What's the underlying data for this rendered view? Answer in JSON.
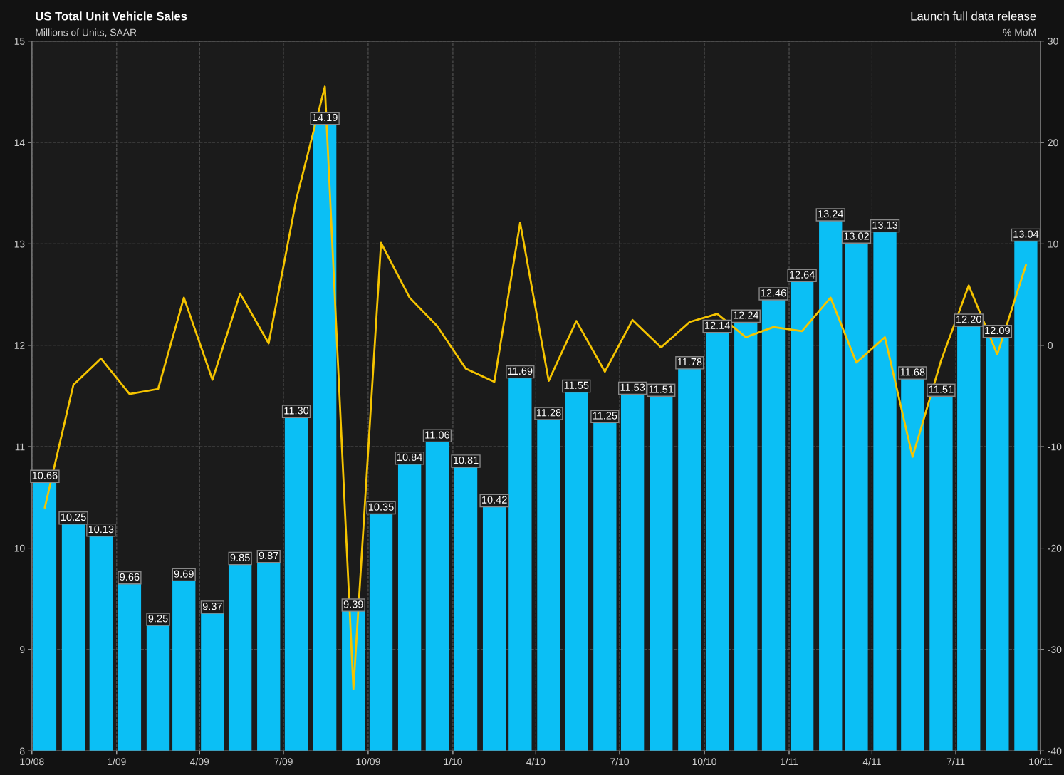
{
  "chart_data": {
    "type": "bar",
    "title": "US Total Unit Vehicle Sales",
    "subtitle": "Millions of Units, SAAR",
    "y2label": "% MoM",
    "annotations": [
      "Launch full data release"
    ],
    "x": [
      "2008-10-15",
      "2008-11-15",
      "2008-12-15",
      "2009-01-15",
      "2009-02-15",
      "2009-03-15",
      "2009-04-15",
      "2009-05-15",
      "2009-06-15",
      "2009-07-15",
      "2009-08-15",
      "2009-09-15",
      "2009-10-15",
      "2009-11-15",
      "2009-12-15",
      "2010-01-15",
      "2010-02-15",
      "2010-03-15",
      "2010-04-15",
      "2010-05-15",
      "2010-06-15",
      "2010-07-15",
      "2010-08-15",
      "2010-09-15",
      "2010-10-15",
      "2010-11-15",
      "2010-12-15",
      "2011-01-15",
      "2011-02-15",
      "2011-03-15",
      "2011-04-15",
      "2011-05-15",
      "2011-06-15",
      "2011-07-15",
      "2011-08-15",
      "2011-09-15"
    ],
    "series": [
      {
        "color": "#0bbff5",
        "values": [
          10.66,
          10.25,
          10.13,
          9.66,
          9.25,
          9.69,
          9.37,
          9.85,
          9.87,
          11.3,
          14.19,
          9.39,
          10.35,
          10.84,
          11.06,
          10.81,
          10.42,
          11.69,
          11.28,
          11.55,
          11.25,
          11.53,
          11.51,
          11.78,
          12.14,
          12.24,
          12.46,
          12.64,
          13.24,
          13.02,
          13.13,
          11.68,
          11.51,
          12.2,
          12.09,
          13.04
        ],
        "value_labels": [
          "10.66",
          "10.25",
          "10.13",
          "9.66",
          "9.25",
          "9.69",
          "9.37",
          "9.85",
          "9.87",
          "11.30",
          "14.19",
          "9.39",
          "10.35",
          "10.84",
          "11.06",
          "10.81",
          "10.42",
          "11.69",
          "11.28",
          "11.55",
          "11.25",
          "11.53",
          "11.51",
          "11.78",
          "12.14",
          "12.24",
          "12.46",
          "12.64",
          "13.24",
          "13.02",
          "13.13",
          "11.68",
          "11.51",
          "12.20",
          "12.09",
          "13.04"
        ]
      },
      {
        "type": "line",
        "axis": "y2",
        "color": "#f5c400",
        "values": [
          -16.0,
          -3.9,
          -1.3,
          -4.8,
          -4.3,
          4.7,
          -3.4,
          5.1,
          0.2,
          14.4,
          25.5,
          -33.9,
          10.1,
          4.7,
          1.9,
          -2.3,
          -3.6,
          12.1,
          -3.5,
          2.4,
          -2.6,
          2.5,
          -0.2,
          2.3,
          3.1,
          0.8,
          1.8,
          1.4,
          4.7,
          -1.7,
          0.8,
          -11.0,
          -1.5,
          5.9,
          -0.9,
          7.9
        ]
      }
    ],
    "ylim": [
      8,
      15
    ],
    "yticks": [
      8,
      9,
      10,
      11,
      12,
      13,
      14,
      15
    ],
    "y2lim": [
      -40,
      30
    ],
    "y2ticks": [
      -40,
      -30,
      -20,
      -10,
      0,
      10,
      20,
      30
    ],
    "xlim": [
      "2008-10-01",
      "2011-10-01"
    ],
    "xticks": [
      {
        "value": "2008-10-01",
        "label": "10/08"
      },
      {
        "value": "2009-01-01",
        "label": "1/09"
      },
      {
        "value": "2009-04-01",
        "label": "4/09"
      },
      {
        "value": "2009-07-01",
        "label": "7/09"
      },
      {
        "value": "2009-10-01",
        "label": "10/09"
      },
      {
        "value": "2010-01-01",
        "label": "1/10"
      },
      {
        "value": "2010-04-01",
        "label": "4/10"
      },
      {
        "value": "2010-07-01",
        "label": "7/10"
      },
      {
        "value": "2010-10-01",
        "label": "10/10"
      },
      {
        "value": "2011-01-01",
        "label": "1/11"
      },
      {
        "value": "2011-04-01",
        "label": "4/11"
      },
      {
        "value": "2011-07-01",
        "label": "7/11"
      },
      {
        "value": "2011-10-01",
        "label": "10/11"
      }
    ],
    "grid": true,
    "line_style": "solid",
    "marker": "none"
  }
}
